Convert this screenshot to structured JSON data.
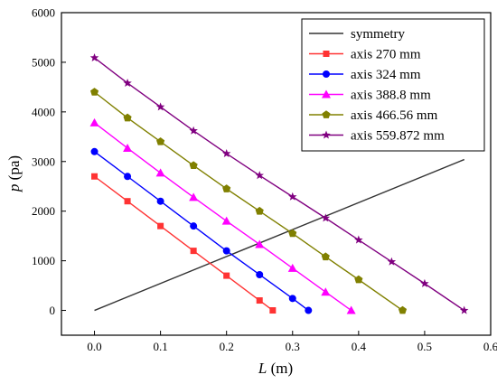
{
  "chart_data": {
    "type": "line",
    "title": "",
    "xlabel": {
      "var": "L",
      "unit": " (m)"
    },
    "ylabel": {
      "var": "p",
      "unit": " (pa)"
    },
    "xlim": [
      -0.05,
      0.6
    ],
    "ylim": [
      -500,
      6000
    ],
    "xticks": [
      0.0,
      0.1,
      0.2,
      0.3,
      0.4,
      0.5,
      0.6
    ],
    "xtick_labels": [
      "0.0",
      "0.1",
      "0.2",
      "0.3",
      "0.4",
      "0.5",
      "0.6"
    ],
    "yticks": [
      0,
      1000,
      2000,
      3000,
      4000,
      5000,
      6000
    ],
    "ytick_labels": [
      "0",
      "1000",
      "2000",
      "3000",
      "4000",
      "5000",
      "6000"
    ],
    "grid": false,
    "legend_position": "top-right",
    "series": [
      {
        "name": "symmetry",
        "color": "#333333",
        "marker": "none",
        "x": [
          0.0,
          0.56
        ],
        "y": [
          0,
          3040
        ]
      },
      {
        "name": "axis 270 mm",
        "color": "#ff3333",
        "marker": "square",
        "x": [
          0.0,
          0.05,
          0.1,
          0.15,
          0.2,
          0.25,
          0.27
        ],
        "y": [
          2700,
          2200,
          1700,
          1200,
          700,
          200,
          0
        ]
      },
      {
        "name": "axis 324 mm",
        "color": "#0000ff",
        "marker": "circle",
        "x": [
          0.0,
          0.05,
          0.1,
          0.15,
          0.2,
          0.25,
          0.3,
          0.324
        ],
        "y": [
          3200,
          2700,
          2200,
          1700,
          1200,
          720,
          240,
          0
        ]
      },
      {
        "name": "axis 388.8 mm",
        "color": "#ff00ff",
        "marker": "triangle",
        "x": [
          0.0,
          0.05,
          0.1,
          0.15,
          0.2,
          0.25,
          0.3,
          0.35,
          0.3888
        ],
        "y": [
          3780,
          3270,
          2770,
          2280,
          1800,
          1330,
          850,
          370,
          0
        ]
      },
      {
        "name": "axis 466.56 mm",
        "color": "#808000",
        "marker": "pentagon",
        "x": [
          0.0,
          0.05,
          0.1,
          0.15,
          0.2,
          0.25,
          0.3,
          0.35,
          0.4,
          0.4666
        ],
        "y": [
          4400,
          3880,
          3400,
          2920,
          2450,
          2000,
          1550,
          1080,
          620,
          0
        ]
      },
      {
        "name": "axis 559.872 mm",
        "color": "#800080",
        "marker": "star",
        "x": [
          0.0,
          0.05,
          0.1,
          0.15,
          0.2,
          0.25,
          0.3,
          0.35,
          0.4,
          0.45,
          0.5,
          0.5599
        ],
        "y": [
          5090,
          4580,
          4100,
          3620,
          3160,
          2720,
          2290,
          1860,
          1420,
          980,
          540,
          0
        ]
      }
    ]
  }
}
